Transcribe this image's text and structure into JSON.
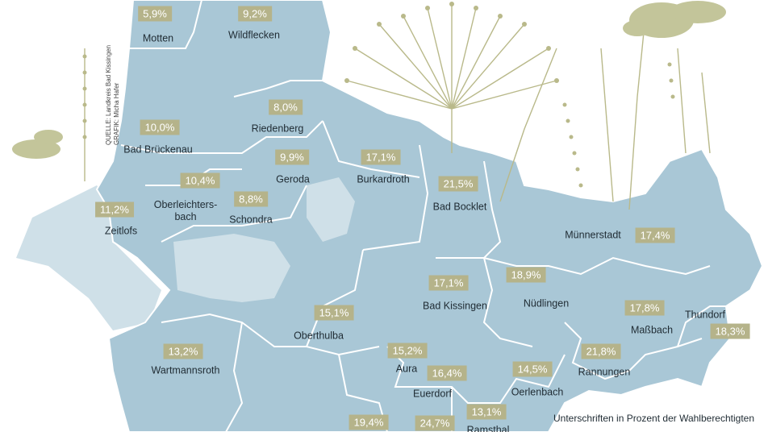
{
  "source_credit": {
    "line1": "QUELLE: Landkreis Bad Kissingen",
    "line2": "GRAFIK: Micha Hafer"
  },
  "legend": {
    "text": "Unterschriften in Prozent der Wahlberechtigten"
  },
  "colors": {
    "region_fill": "#a9c7d6",
    "outside_fill": "#cfe0e8",
    "border": "#ffffff",
    "badge": "#b5b38a",
    "plant": "#b9b98a"
  },
  "municipalities": [
    {
      "name": "Motten",
      "percent": "5,9%"
    },
    {
      "name": "Wildflecken",
      "percent": "9,2%"
    },
    {
      "name": "Riedenberg",
      "percent": "8,0%"
    },
    {
      "name": "Bad Brückenau",
      "percent": "10,0%"
    },
    {
      "name": "Geroda",
      "percent": "9,9%"
    },
    {
      "name": "Burkardroth",
      "percent": "17,1%"
    },
    {
      "name": "Bad Bocklet",
      "percent": "21,5%"
    },
    {
      "name": "Oberleichters-\nbach",
      "percent": "10,4%"
    },
    {
      "name": "Schondra",
      "percent": "8,8%"
    },
    {
      "name": "Zeitlofs",
      "percent": "11,2%"
    },
    {
      "name": "Münnerstadt",
      "percent": "17,4%"
    },
    {
      "name": "Bad Kissingen",
      "percent": "17,1%"
    },
    {
      "name": "Nüdlingen",
      "percent": "18,9%"
    },
    {
      "name": "Oberthulba",
      "percent": "15,1%"
    },
    {
      "name": "Maßbach",
      "percent": "17,8%"
    },
    {
      "name": "Thundorf",
      "percent": "18,3%"
    },
    {
      "name": "Wartmannsroth",
      "percent": "13,2%"
    },
    {
      "name": "Aura",
      "percent": "15,2%"
    },
    {
      "name": "Euerdorf",
      "percent": "16,4%"
    },
    {
      "name": "Oerlenbach",
      "percent": "14,5%"
    },
    {
      "name": "Rannungen",
      "percent": "21,8%"
    },
    {
      "name": "Ramsthal",
      "percent": "13,1%"
    },
    {
      "name": "",
      "percent": "19,4%"
    },
    {
      "name": "",
      "percent": "24,7%"
    }
  ]
}
